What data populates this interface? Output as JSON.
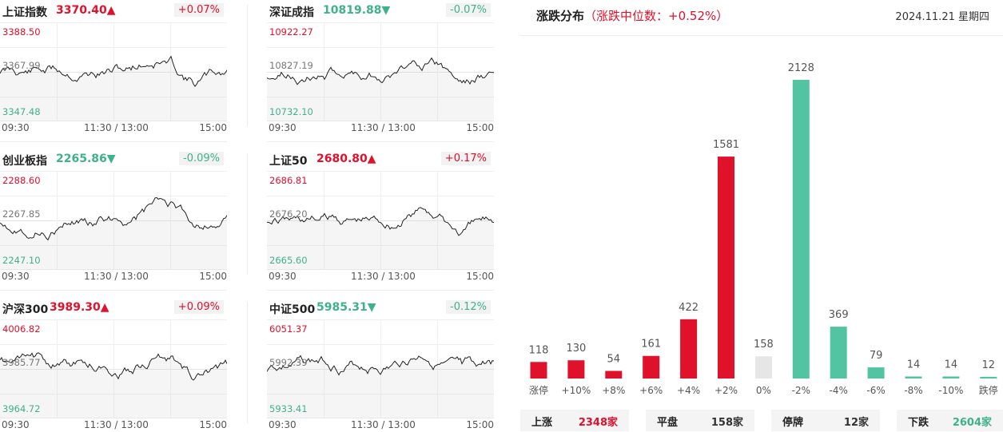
{
  "indices": [
    {
      "name": "上证指数",
      "value": "3370.40",
      "arrow": "▲",
      "direction": "up",
      "change": "+0.07%",
      "high": "3388.50",
      "mid": "3367.99",
      "low": "3347.48",
      "seed": 11
    },
    {
      "name": "深证成指",
      "value": "10819.88",
      "arrow": "▼",
      "direction": "down",
      "change": "-0.07%",
      "high": "10922.27",
      "mid": "10827.19",
      "low": "10732.10",
      "seed": 23
    },
    {
      "name": "创业板指",
      "value": "2265.86",
      "arrow": "▼",
      "direction": "down",
      "change": "-0.09%",
      "high": "2288.60",
      "mid": "2267.85",
      "low": "2247.10",
      "seed": 37
    },
    {
      "name": "上证50",
      "value": "2680.80",
      "arrow": "▲",
      "direction": "up",
      "change": "+0.17%",
      "high": "2686.81",
      "mid": "2676.20",
      "low": "2665.60",
      "seed": 41
    },
    {
      "name": "沪深300",
      "value": "3989.30",
      "arrow": "▲",
      "direction": "up",
      "change": "+0.09%",
      "high": "4006.82",
      "mid": "3985.77",
      "low": "3964.72",
      "seed": 53
    },
    {
      "name": "中证500",
      "value": "5985.31",
      "arrow": "▼",
      "direction": "down",
      "change": "-0.12%",
      "high": "6051.37",
      "mid": "5992.39",
      "low": "5933.41",
      "seed": 67
    }
  ],
  "time_axis": [
    "09:30",
    "11:30 / 13:00",
    "15:00"
  ],
  "distribution": {
    "title": "涨跌分布",
    "median_text": "（涨跌中位数：+0.52%）",
    "date": "2024.11.21 星期四"
  },
  "chart_data": {
    "type": "bar",
    "categories": [
      "涨停",
      "+10%",
      "+8%",
      "+6%",
      "+4%",
      "+2%",
      "0%",
      "-2%",
      "-4%",
      "-6%",
      "-8%",
      "-10%",
      "跌停"
    ],
    "values": [
      118,
      130,
      54,
      161,
      422,
      1581,
      158,
      2128,
      369,
      79,
      14,
      14,
      12
    ],
    "bar_colors": [
      "#e0112b",
      "#e0112b",
      "#e0112b",
      "#e0112b",
      "#e0112b",
      "#e0112b",
      "#e6e6e6",
      "#52c4a2",
      "#52c4a2",
      "#52c4a2",
      "#52c4a2",
      "#52c4a2",
      "#52c4a2"
    ],
    "ylim": [
      0,
      2128
    ]
  },
  "summary": [
    {
      "label": "上涨",
      "value": "2348家",
      "tone": "up"
    },
    {
      "label": "平盘",
      "value": "158家",
      "tone": "neutral"
    },
    {
      "label": "停牌",
      "value": "12家",
      "tone": "neutral"
    },
    {
      "label": "下跌",
      "value": "2604家",
      "tone": "down"
    }
  ],
  "colors": {
    "up": "#e0112b",
    "down": "#3fb18c",
    "flat": "#e6e6e6",
    "line": "#222222"
  }
}
